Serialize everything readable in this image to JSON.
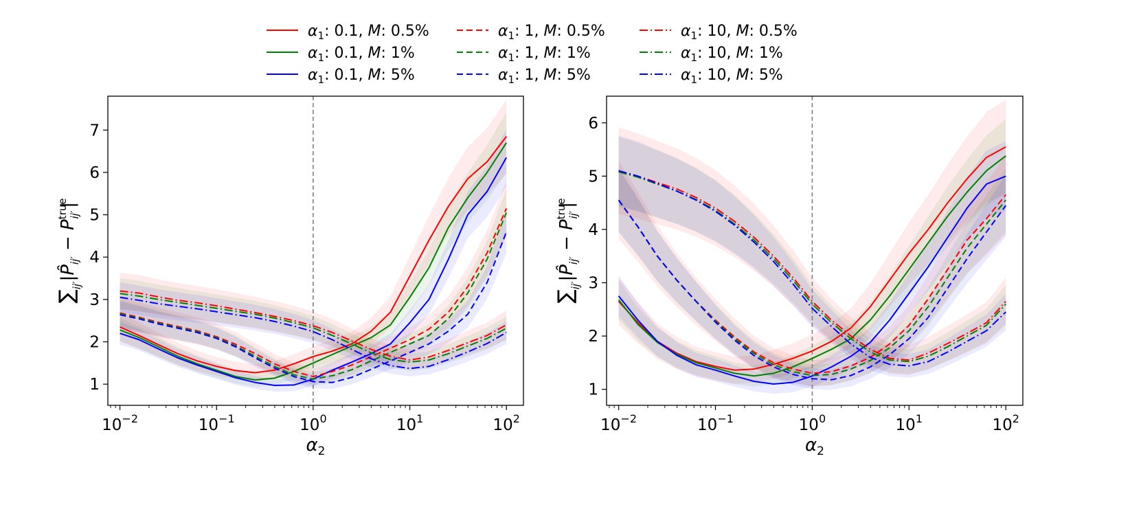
{
  "chart_data": [
    {
      "type": "line",
      "panel": "left",
      "xscale": "log",
      "xlim": [
        0.0075,
        150
      ],
      "ylim": [
        0.5,
        7.8
      ],
      "xlabel": "α₂",
      "ylabel": "Σ_ij' |P̂_ij' − P_ij'^true|",
      "xticks": [
        0.01,
        0.1,
        1,
        10,
        100
      ],
      "xtick_labels": [
        {
          "base": "10",
          "exp": "−2"
        },
        {
          "base": "10",
          "exp": "−1"
        },
        {
          "base": "10",
          "exp": "0"
        },
        {
          "base": "10",
          "exp": "1"
        },
        {
          "base": "10",
          "exp": "2"
        }
      ],
      "yticks": [
        1,
        2,
        3,
        4,
        5,
        6,
        7
      ],
      "ytick_labels": [
        "1",
        "2",
        "3",
        "4",
        "5",
        "6",
        "7"
      ],
      "vline_x": 1,
      "x": [
        0.01,
        0.0158,
        0.0251,
        0.0398,
        0.0631,
        0.1,
        0.158,
        0.251,
        0.398,
        0.631,
        1,
        1.58,
        2.51,
        3.98,
        6.31,
        10,
        15.8,
        25.1,
        39.8,
        63.1,
        100
      ],
      "series": [
        {
          "name": "α1:0.1, M:0.5%",
          "color": "#ff0000",
          "dash": "solid",
          "band": 0.12,
          "values": [
            2.35,
            2.15,
            1.93,
            1.72,
            1.55,
            1.42,
            1.32,
            1.27,
            1.33,
            1.48,
            1.65,
            1.78,
            1.95,
            2.25,
            2.7,
            3.55,
            4.4,
            5.2,
            5.85,
            6.25,
            6.85
          ]
        },
        {
          "name": "α1:0.1, M:1%",
          "color": "#008000",
          "dash": "solid",
          "band": 0.1,
          "values": [
            2.28,
            2.1,
            1.88,
            1.66,
            1.48,
            1.33,
            1.18,
            1.1,
            1.14,
            1.3,
            1.5,
            1.7,
            1.9,
            2.1,
            2.4,
            3.05,
            3.75,
            4.7,
            5.4,
            6.0,
            6.7
          ]
        },
        {
          "name": "α1:0.1, M:5%",
          "color": "#0000ff",
          "dash": "solid",
          "band": 0.1,
          "values": [
            2.2,
            2.05,
            1.83,
            1.62,
            1.45,
            1.3,
            1.15,
            1.04,
            0.97,
            0.98,
            1.12,
            1.33,
            1.52,
            1.72,
            1.95,
            2.45,
            3.0,
            3.95,
            5.0,
            5.55,
            6.35
          ]
        },
        {
          "name": "α1:1, M:0.5%",
          "color": "#ff0000",
          "dash": "dashed",
          "band": 0.12,
          "values": [
            2.68,
            2.58,
            2.46,
            2.36,
            2.26,
            2.12,
            1.94,
            1.72,
            1.48,
            1.3,
            1.18,
            1.3,
            1.45,
            1.65,
            1.85,
            2.05,
            2.3,
            2.7,
            3.3,
            4.1,
            5.15
          ]
        },
        {
          "name": "α1:1, M:1%",
          "color": "#008000",
          "dash": "dashed",
          "band": 0.1,
          "values": [
            2.66,
            2.56,
            2.44,
            2.34,
            2.24,
            2.1,
            1.9,
            1.66,
            1.42,
            1.22,
            1.12,
            1.2,
            1.34,
            1.55,
            1.75,
            1.95,
            2.15,
            2.55,
            3.15,
            3.95,
            5.05
          ]
        },
        {
          "name": "α1:1, M:5%",
          "color": "#0000ff",
          "dash": "dashed",
          "band": 0.1,
          "values": [
            2.64,
            2.54,
            2.42,
            2.32,
            2.22,
            2.08,
            1.88,
            1.62,
            1.38,
            1.18,
            1.06,
            1.04,
            1.16,
            1.35,
            1.55,
            1.75,
            1.95,
            2.25,
            2.65,
            3.4,
            4.6
          ]
        },
        {
          "name": "α1:10, M:0.5%",
          "color": "#ff0000",
          "dash": "dashdot",
          "band": 0.12,
          "values": [
            3.2,
            3.15,
            3.06,
            2.98,
            2.92,
            2.85,
            2.77,
            2.69,
            2.6,
            2.5,
            2.38,
            2.22,
            2.02,
            1.82,
            1.66,
            1.57,
            1.64,
            1.8,
            1.98,
            2.15,
            2.4
          ]
        },
        {
          "name": "α1:10, M:1%",
          "color": "#008000",
          "dash": "dashdot",
          "band": 0.1,
          "values": [
            3.14,
            3.08,
            3.0,
            2.93,
            2.86,
            2.79,
            2.72,
            2.65,
            2.56,
            2.45,
            2.33,
            2.15,
            1.95,
            1.74,
            1.58,
            1.52,
            1.57,
            1.72,
            1.9,
            2.08,
            2.32
          ]
        },
        {
          "name": "α1:10, M:5%",
          "color": "#0000ff",
          "dash": "dashdot",
          "band": 0.1,
          "values": [
            3.05,
            2.98,
            2.9,
            2.84,
            2.78,
            2.71,
            2.64,
            2.57,
            2.48,
            2.37,
            2.24,
            2.05,
            1.82,
            1.6,
            1.44,
            1.37,
            1.42,
            1.58,
            1.76,
            1.96,
            2.22
          ]
        }
      ]
    },
    {
      "type": "line",
      "panel": "right",
      "xscale": "log",
      "xlim": [
        0.0075,
        150
      ],
      "ylim": [
        0.7,
        6.5
      ],
      "xlabel": "α₂",
      "ylabel": "Σ_ij' |P̂_ij' − P_ij'^true|",
      "xticks": [
        0.01,
        0.1,
        1,
        10,
        100
      ],
      "xtick_labels": [
        {
          "base": "10",
          "exp": "−2"
        },
        {
          "base": "10",
          "exp": "−1"
        },
        {
          "base": "10",
          "exp": "0"
        },
        {
          "base": "10",
          "exp": "1"
        },
        {
          "base": "10",
          "exp": "2"
        }
      ],
      "yticks": [
        1,
        2,
        3,
        4,
        5,
        6
      ],
      "ytick_labels": [
        "1",
        "2",
        "3",
        "4",
        "5",
        "6"
      ],
      "vline_x": 1,
      "x": [
        0.01,
        0.0158,
        0.0251,
        0.0398,
        0.0631,
        0.1,
        0.158,
        0.251,
        0.398,
        0.631,
        1,
        1.58,
        2.51,
        3.98,
        6.31,
        10,
        15.8,
        25.1,
        39.8,
        63.1,
        100
      ],
      "series": [
        {
          "name": "α1:0.1, M:0.5%",
          "color": "#ff0000",
          "dash": "solid",
          "band": 0.15,
          "values": [
            2.65,
            2.25,
            1.9,
            1.68,
            1.52,
            1.43,
            1.36,
            1.38,
            1.47,
            1.58,
            1.72,
            1.9,
            2.15,
            2.55,
            3.05,
            3.55,
            4.0,
            4.5,
            4.95,
            5.35,
            5.55
          ]
        },
        {
          "name": "α1:0.1, M:1%",
          "color": "#008000",
          "dash": "solid",
          "band": 0.12,
          "values": [
            2.68,
            2.22,
            1.88,
            1.66,
            1.5,
            1.4,
            1.3,
            1.25,
            1.3,
            1.42,
            1.58,
            1.75,
            1.95,
            2.3,
            2.75,
            3.25,
            3.75,
            4.25,
            4.7,
            5.1,
            5.38
          ]
        },
        {
          "name": "α1:0.1, M:5%",
          "color": "#0000ff",
          "dash": "solid",
          "band": 0.12,
          "values": [
            2.75,
            2.3,
            1.9,
            1.64,
            1.46,
            1.36,
            1.25,
            1.15,
            1.1,
            1.13,
            1.25,
            1.42,
            1.62,
            1.88,
            2.3,
            2.8,
            3.3,
            3.85,
            4.4,
            4.85,
            5.0
          ]
        },
        {
          "name": "α1:1, M:0.5%",
          "color": "#ff0000",
          "dash": "dashed",
          "band": 0.15,
          "values": [
            4.55,
            4.05,
            3.5,
            3.05,
            2.65,
            2.3,
            1.98,
            1.7,
            1.5,
            1.38,
            1.3,
            1.33,
            1.44,
            1.6,
            1.85,
            2.2,
            2.7,
            3.25,
            3.8,
            4.2,
            4.65
          ]
        },
        {
          "name": "α1:1, M:1%",
          "color": "#008000",
          "dash": "dashed",
          "band": 0.12,
          "values": [
            4.55,
            4.05,
            3.5,
            3.05,
            2.65,
            2.28,
            1.95,
            1.67,
            1.46,
            1.33,
            1.26,
            1.28,
            1.38,
            1.54,
            1.78,
            2.1,
            2.55,
            3.1,
            3.65,
            4.1,
            4.55
          ]
        },
        {
          "name": "α1:1, M:5%",
          "color": "#0000ff",
          "dash": "dashed",
          "band": 0.12,
          "values": [
            4.55,
            4.05,
            3.5,
            3.05,
            2.65,
            2.26,
            1.92,
            1.63,
            1.42,
            1.28,
            1.2,
            1.18,
            1.26,
            1.42,
            1.65,
            1.95,
            2.35,
            2.9,
            3.45,
            3.95,
            4.45
          ]
        },
        {
          "name": "α1:10, M:0.5%",
          "color": "#ff0000",
          "dash": "dashdot",
          "band": 0.15,
          "values": [
            5.1,
            5.0,
            4.88,
            4.76,
            4.6,
            4.4,
            4.15,
            3.85,
            3.5,
            3.1,
            2.65,
            2.3,
            2.0,
            1.75,
            1.58,
            1.55,
            1.68,
            1.86,
            2.05,
            2.25,
            2.65
          ]
        },
        {
          "name": "α1:10, M:1%",
          "color": "#008000",
          "dash": "dashdot",
          "band": 0.12,
          "values": [
            5.08,
            4.98,
            4.85,
            4.72,
            4.56,
            4.36,
            4.1,
            3.8,
            3.45,
            3.05,
            2.6,
            2.25,
            1.95,
            1.7,
            1.55,
            1.52,
            1.62,
            1.8,
            2.0,
            2.2,
            2.6
          ]
        },
        {
          "name": "α1:10, M:5%",
          "color": "#0000ff",
          "dash": "dashdot",
          "band": 0.12,
          "values": [
            5.1,
            5.0,
            4.86,
            4.72,
            4.55,
            4.34,
            4.08,
            3.76,
            3.4,
            2.98,
            2.52,
            2.18,
            1.85,
            1.6,
            1.47,
            1.44,
            1.52,
            1.7,
            1.9,
            2.1,
            2.45
          ]
        }
      ]
    }
  ],
  "legend": {
    "columns": [
      [
        {
          "alpha_label": "α",
          "alpha_sub": "1",
          "alpha_val": ": 0.1,",
          "m_label": "M",
          "m_val": ": 0.5%",
          "color": "#ff0000",
          "dash": "solid"
        },
        {
          "alpha_label": "α",
          "alpha_sub": "1",
          "alpha_val": ": 0.1,",
          "m_label": "M",
          "m_val": ": 1%",
          "color": "#008000",
          "dash": "solid"
        },
        {
          "alpha_label": "α",
          "alpha_sub": "1",
          "alpha_val": ": 0.1,",
          "m_label": "M",
          "m_val": ": 5%",
          "color": "#0000ff",
          "dash": "solid"
        }
      ],
      [
        {
          "alpha_label": "α",
          "alpha_sub": "1",
          "alpha_val": ": 1,",
          "m_label": "M",
          "m_val": ": 0.5%",
          "color": "#ff0000",
          "dash": "dashed"
        },
        {
          "alpha_label": "α",
          "alpha_sub": "1",
          "alpha_val": ": 1,",
          "m_label": "M",
          "m_val": ": 1%",
          "color": "#008000",
          "dash": "dashed"
        },
        {
          "alpha_label": "α",
          "alpha_sub": "1",
          "alpha_val": ": 1,",
          "m_label": "M",
          "m_val": ": 5%",
          "color": "#0000ff",
          "dash": "dashed"
        }
      ],
      [
        {
          "alpha_label": "α",
          "alpha_sub": "1",
          "alpha_val": ": 10,",
          "m_label": "M",
          "m_val": ": 0.5%",
          "color": "#ff0000",
          "dash": "dashdot"
        },
        {
          "alpha_label": "α",
          "alpha_sub": "1",
          "alpha_val": ": 10,",
          "m_label": "M",
          "m_val": ": 1%",
          "color": "#008000",
          "dash": "dashdot"
        },
        {
          "alpha_label": "α",
          "alpha_sub": "1",
          "alpha_val": ": 10,",
          "m_label": "M",
          "m_val": ": 5%",
          "color": "#0000ff",
          "dash": "dashdot"
        }
      ]
    ]
  },
  "axis_text": {
    "xlabel_symbol": "α",
    "xlabel_sub": "2",
    "ylabel_sum": "∑",
    "ylabel_sum_sub": "ij′",
    "ylabel_abs_open": "|",
    "ylabel_phat": "P̂",
    "ylabel_phat_sub": "ij′",
    "ylabel_minus": " − ",
    "ylabel_p": "P",
    "ylabel_p_sub": "ij′",
    "ylabel_p_sup": "true",
    "ylabel_abs_close": "|"
  }
}
